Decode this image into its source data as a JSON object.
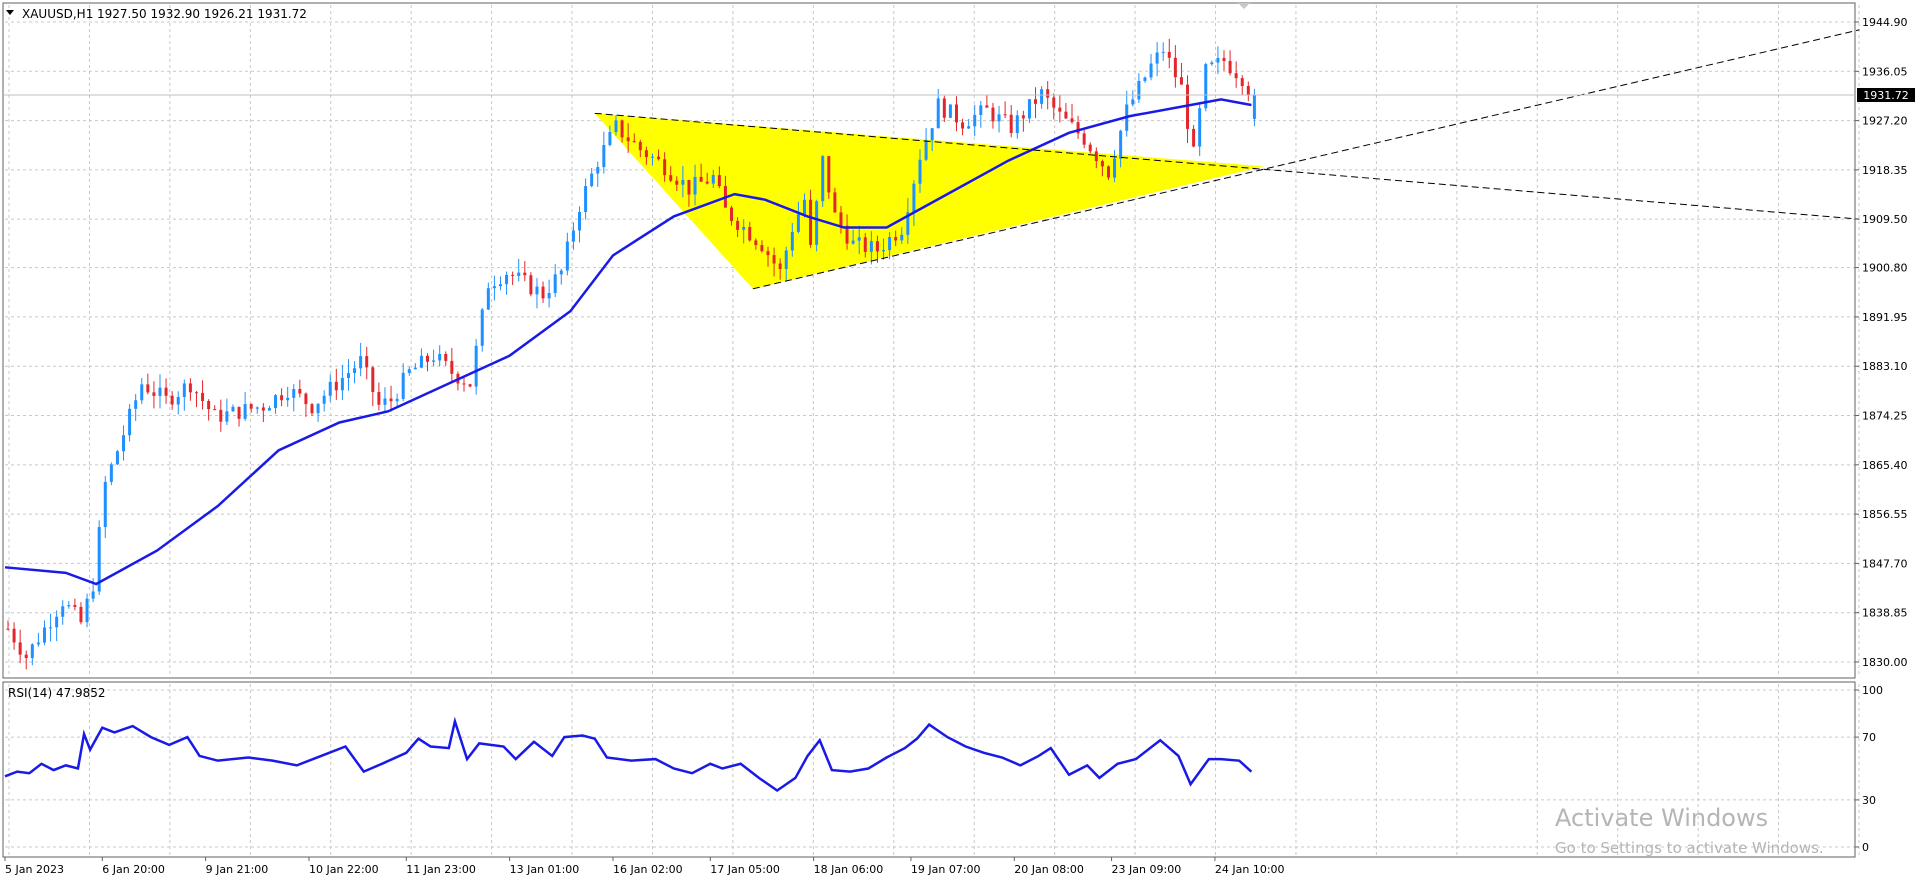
{
  "colors": {
    "background": "#ffffff",
    "grid": "#c8c8c8",
    "axis": "#606060",
    "text": "#000000",
    "bull_candle": "#1e90ff",
    "bear_candle": "#e3262b",
    "moving_average": "#1a1ae6",
    "rsi_line": "#1a1ae6",
    "triangle_fill": "#ffff00",
    "trendline": "#000000",
    "price_label_bg": "#000000",
    "price_label_text": "#ffffff",
    "watermark": "#b5b5b5"
  },
  "header": {
    "symbol_label": "XAUUSD,H1",
    "ohlc": "1927.50 1932.90 1926.21 1931.72"
  },
  "current_price_label": "1931.72",
  "rsi_header": "RSI(14) 47.9852",
  "watermark": {
    "title": "Activate Windows",
    "subtitle": "Go to Settings to activate Windows."
  },
  "chart_data": [
    {
      "type": "candlestick",
      "title": "XAUUSD,H1",
      "symbol": "XAUUSD",
      "timeframe": "H1",
      "last_ohlc": {
        "open": 1927.5,
        "high": 1932.9,
        "low": 1926.21,
        "close": 1931.72
      },
      "current_price": 1931.72,
      "ylim": [
        1825.5,
        1947.5
      ],
      "y_ticks": [
        "1944.90",
        "1936.05",
        "1927.20",
        "1918.35",
        "1909.50",
        "1900.80",
        "1891.95",
        "1883.10",
        "1874.25",
        "1865.40",
        "1856.55",
        "1847.70",
        "1838.85",
        "1830.00"
      ],
      "x_ticks": [
        "5 Jan 2023",
        "6 Jan 20:00",
        "9 Jan 21:00",
        "10 Jan 22:00",
        "11 Jan 23:00",
        "13 Jan 01:00",
        "16 Jan 02:00",
        "17 Jan 05:00",
        "18 Jan 06:00",
        "19 Jan 07:00",
        "20 Jan 08:00",
        "23 Jan 09:00",
        "24 Jan 10:00"
      ],
      "grid": true,
      "close_path": [
        [
          0,
          1836
        ],
        [
          3,
          1831
        ],
        [
          6,
          1836
        ],
        [
          9,
          1841
        ],
        [
          12,
          1837
        ],
        [
          14,
          1844
        ],
        [
          16,
          1862
        ],
        [
          18,
          1868
        ],
        [
          22,
          1880
        ],
        [
          26,
          1877
        ],
        [
          30,
          1880
        ],
        [
          34,
          1874
        ],
        [
          38,
          1875
        ],
        [
          42,
          1876
        ],
        [
          46,
          1879
        ],
        [
          50,
          1876
        ],
        [
          54,
          1880
        ],
        [
          58,
          1884
        ],
        [
          61,
          1876
        ],
        [
          63,
          1877
        ],
        [
          66,
          1882
        ],
        [
          70,
          1885
        ],
        [
          73,
          1882
        ],
        [
          76,
          1880
        ],
        [
          79,
          1898
        ],
        [
          82,
          1900
        ],
        [
          85,
          1898
        ],
        [
          88,
          1896
        ],
        [
          91,
          1900
        ],
        [
          94,
          1912
        ],
        [
          97,
          1920
        ],
        [
          100,
          1926
        ],
        [
          104,
          1922
        ],
        [
          108,
          1919
        ],
        [
          112,
          1915
        ],
        [
          116,
          1917
        ],
        [
          118,
          1911
        ],
        [
          121,
          1908
        ],
        [
          124,
          1905
        ],
        [
          127,
          1900
        ],
        [
          129,
          1908
        ],
        [
          131,
          1913
        ],
        [
          132,
          1904
        ],
        [
          134,
          1920
        ],
        [
          136,
          1910
        ],
        [
          139,
          1905
        ],
        [
          143,
          1904
        ],
        [
          147,
          1908
        ],
        [
          150,
          1921
        ],
        [
          153,
          1930
        ],
        [
          157,
          1927
        ],
        [
          161,
          1929
        ],
        [
          165,
          1926
        ],
        [
          170,
          1932
        ],
        [
          173,
          1928
        ],
        [
          177,
          1924
        ],
        [
          181,
          1918
        ],
        [
          184,
          1929
        ],
        [
          188,
          1937
        ],
        [
          190,
          1940
        ],
        [
          193,
          1933
        ],
        [
          195,
          1921
        ],
        [
          197,
          1936
        ],
        [
          200,
          1938
        ],
        [
          203,
          1935
        ],
        [
          205,
          1931
        ]
      ],
      "moving_average": [
        [
          0,
          1847
        ],
        [
          10,
          1846
        ],
        [
          15,
          1844
        ],
        [
          25,
          1850
        ],
        [
          35,
          1858
        ],
        [
          45,
          1868
        ],
        [
          55,
          1873
        ],
        [
          63,
          1875
        ],
        [
          73,
          1880
        ],
        [
          83,
          1885
        ],
        [
          93,
          1893
        ],
        [
          100,
          1903
        ],
        [
          110,
          1910
        ],
        [
          120,
          1914
        ],
        [
          125,
          1913
        ],
        [
          132,
          1910
        ],
        [
          138,
          1908
        ],
        [
          145,
          1908
        ],
        [
          155,
          1914
        ],
        [
          165,
          1920
        ],
        [
          175,
          1925
        ],
        [
          185,
          1928
        ],
        [
          195,
          1930
        ],
        [
          200,
          1931
        ],
        [
          205,
          1930
        ]
      ],
      "triangle": {
        "points": [
          [
            97,
            1928.5
          ],
          [
            123,
            1897
          ],
          [
            207,
            1919
          ]
        ],
        "upper_line": [
          [
            97,
            1928.5
          ],
          [
            305,
            1909.5
          ]
        ],
        "lower_line": [
          [
            123,
            1897
          ],
          [
            305,
            1943.5
          ]
        ]
      }
    },
    {
      "type": "line",
      "title": "RSI(14) 47.9852",
      "indicator": "RSI(14)",
      "current_value": 47.9852,
      "ylim": [
        0,
        100
      ],
      "y_ticks": [
        100,
        70,
        30,
        0
      ],
      "points": [
        [
          0,
          45
        ],
        [
          2,
          48
        ],
        [
          4,
          47
        ],
        [
          6,
          53
        ],
        [
          8,
          49
        ],
        [
          10,
          52
        ],
        [
          12,
          50
        ],
        [
          13,
          72
        ],
        [
          14,
          62
        ],
        [
          16,
          76
        ],
        [
          18,
          73
        ],
        [
          21,
          77
        ],
        [
          24,
          70
        ],
        [
          27,
          65
        ],
        [
          30,
          70
        ],
        [
          32,
          58
        ],
        [
          35,
          55
        ],
        [
          40,
          57
        ],
        [
          44,
          55
        ],
        [
          48,
          52
        ],
        [
          52,
          58
        ],
        [
          56,
          64
        ],
        [
          59,
          48
        ],
        [
          62,
          53
        ],
        [
          66,
          60
        ],
        [
          68,
          69
        ],
        [
          70,
          64
        ],
        [
          73,
          63
        ],
        [
          74,
          80
        ],
        [
          76,
          56
        ],
        [
          78,
          66
        ],
        [
          82,
          64
        ],
        [
          84,
          56
        ],
        [
          87,
          67
        ],
        [
          90,
          58
        ],
        [
          92,
          70
        ],
        [
          95,
          71
        ],
        [
          97,
          69
        ],
        [
          99,
          57
        ],
        [
          103,
          55
        ],
        [
          107,
          56
        ],
        [
          110,
          50
        ],
        [
          113,
          47
        ],
        [
          116,
          53
        ],
        [
          118,
          50
        ],
        [
          121,
          53
        ],
        [
          124,
          44
        ],
        [
          127,
          36
        ],
        [
          130,
          44
        ],
        [
          132,
          58
        ],
        [
          134,
          68
        ],
        [
          136,
          49
        ],
        [
          139,
          48
        ],
        [
          142,
          50
        ],
        [
          145,
          57
        ],
        [
          148,
          63
        ],
        [
          150,
          69
        ],
        [
          152,
          78
        ],
        [
          155,
          70
        ],
        [
          158,
          64
        ],
        [
          161,
          60
        ],
        [
          164,
          57
        ],
        [
          167,
          52
        ],
        [
          170,
          58
        ],
        [
          172,
          63
        ],
        [
          175,
          46
        ],
        [
          178,
          52
        ],
        [
          180,
          44
        ],
        [
          183,
          53
        ],
        [
          186,
          56
        ],
        [
          190,
          68
        ],
        [
          193,
          58
        ],
        [
          195,
          40
        ],
        [
          198,
          56
        ],
        [
          200,
          56
        ],
        [
          203,
          55
        ],
        [
          205,
          48
        ]
      ]
    }
  ]
}
